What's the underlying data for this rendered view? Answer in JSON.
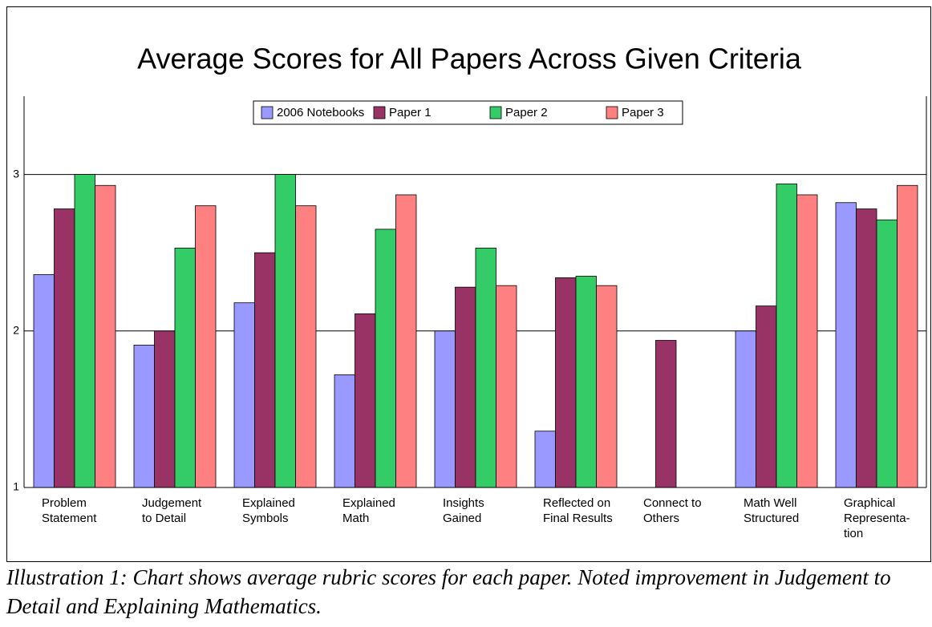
{
  "chart_data": {
    "type": "bar",
    "title": "Average Scores for All Papers Across Given Criteria",
    "categories": [
      "Problem\nStatement",
      "Judgement\nto Detail",
      "Explained\nSymbols",
      "Explained\nMath",
      "Insights\nGained",
      "Reflected on\nFinal Results",
      "Connect to\nOthers",
      "Math Well\nStructured",
      "Graphical\nRepresenta-\ntion"
    ],
    "series": [
      {
        "name": "2006 Notebooks",
        "color": "#9999ff",
        "values": [
          2.36,
          1.91,
          2.18,
          1.72,
          2.0,
          1.36,
          null,
          2.0,
          2.82
        ]
      },
      {
        "name": "Paper 1",
        "color": "#993366",
        "values": [
          2.78,
          2.0,
          2.5,
          2.11,
          2.28,
          2.34,
          1.94,
          2.16,
          2.78
        ]
      },
      {
        "name": "Paper 2",
        "color": "#33cc66",
        "values": [
          3.0,
          2.53,
          3.0,
          2.65,
          2.53,
          2.35,
          null,
          2.94,
          2.71
        ]
      },
      {
        "name": "Paper 3",
        "color": "#ff8080",
        "values": [
          2.93,
          2.8,
          2.8,
          2.87,
          2.29,
          2.29,
          null,
          2.87,
          2.93
        ]
      }
    ],
    "ylim": [
      1,
      3.5
    ],
    "yticks": [
      1,
      2,
      3
    ],
    "grid": true,
    "legend": "top"
  },
  "caption": "Illustration 1: Chart shows average rubric scores for each paper. Noted improvement in Judgement to Detail and Explaining Mathematics."
}
